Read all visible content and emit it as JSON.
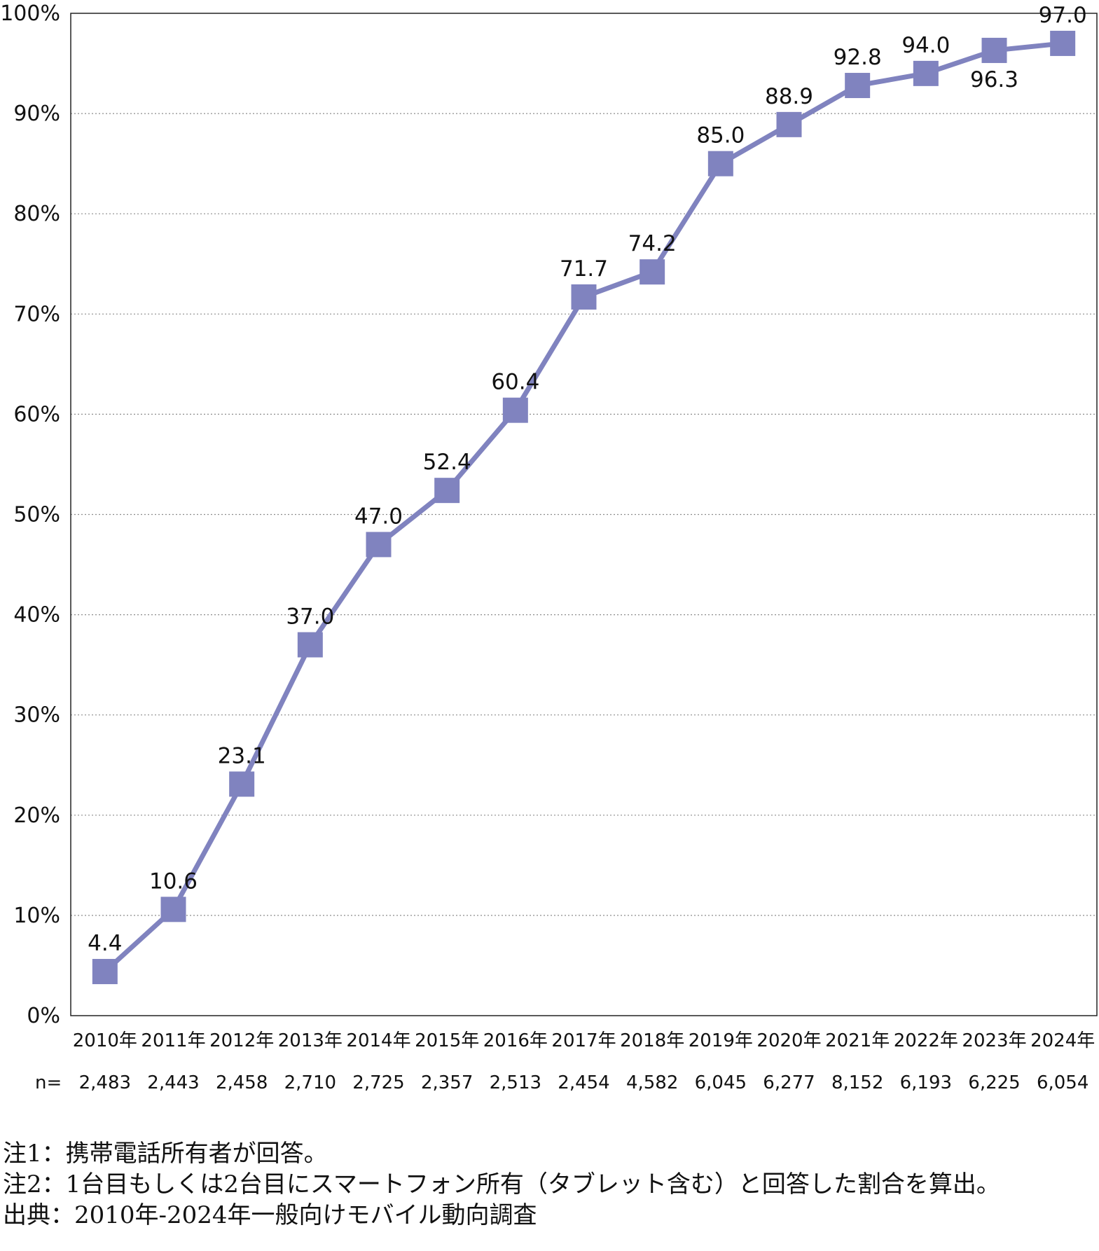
{
  "chart_data": {
    "type": "line",
    "title": "",
    "xlabel": "",
    "ylabel": "",
    "ylim": [
      0,
      100
    ],
    "yticks": [
      "0%",
      "10%",
      "20%",
      "30%",
      "40%",
      "50%",
      "60%",
      "70%",
      "80%",
      "90%",
      "100%"
    ],
    "grid": true,
    "categories": [
      "2010年",
      "2011年",
      "2012年",
      "2013年",
      "2014年",
      "2015年",
      "2016年",
      "2017年",
      "2018年",
      "2019年",
      "2020年",
      "2021年",
      "2022年",
      "2023年",
      "2024年"
    ],
    "series": [
      {
        "name": "",
        "color": "#8083bf",
        "values": [
          4.4,
          10.6,
          23.1,
          37.0,
          47.0,
          52.4,
          60.4,
          71.7,
          74.2,
          85.0,
          88.9,
          92.8,
          94.0,
          96.3,
          97.0
        ],
        "labels": [
          "4.4",
          "10.6",
          "23.1",
          "37.0",
          "47.0",
          "52.4",
          "60.4",
          "71.7",
          "74.2",
          "85.0",
          "88.9",
          "92.8",
          "94.0",
          "96.3",
          "97.0"
        ]
      }
    ],
    "n_label": "n=",
    "n_values": [
      "2,483",
      "2,443",
      "2,458",
      "2,710",
      "2,725",
      "2,357",
      "2,513",
      "2,454",
      "4,582",
      "6,045",
      "6,277",
      "8,152",
      "6,193",
      "6,225",
      "6,054"
    ]
  },
  "notes": {
    "note1": "注1：携帯電話所有者が回答。",
    "note2": "注2：1台目もしくは2台目にスマートフォン所有（タブレット含む）と回答した割合を算出。",
    "source": "出典：2010年-2024年一般向けモバイル動向調査"
  }
}
